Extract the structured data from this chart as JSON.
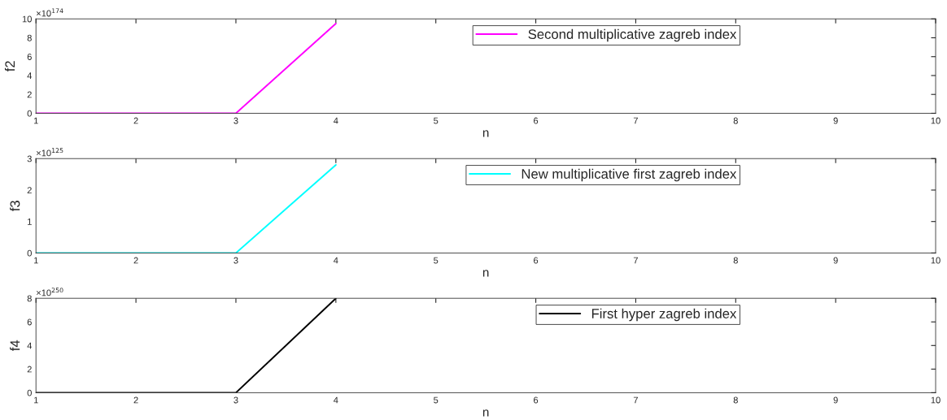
{
  "chart_data": [
    {
      "type": "line",
      "xlabel": "n",
      "ylabel": "f2",
      "annotations": [
        "×10$^{174}$"
      ],
      "x": [
        1,
        2,
        3,
        4
      ],
      "series": [
        {
          "name": "Second multiplicative zagreb index",
          "color": "#ff00ff",
          "values": [
            0,
            0,
            0,
            9.5
          ]
        }
      ],
      "xlim": [
        1,
        10
      ],
      "xticks": [
        1,
        2,
        3,
        4,
        5,
        6,
        7,
        8,
        9,
        10
      ],
      "ylim": [
        0,
        10
      ],
      "yticks": [
        0,
        2,
        4,
        6,
        8,
        10
      ],
      "legend": "top right",
      "grid": false
    },
    {
      "type": "line",
      "xlabel": "n",
      "ylabel": "f3",
      "annotations": [
        "×10$^{125}$"
      ],
      "x": [
        1,
        2,
        3,
        4
      ],
      "series": [
        {
          "name": "New multiplicative first zagreb index",
          "color": "#00ffff",
          "values": [
            0,
            0,
            0,
            2.8
          ]
        }
      ],
      "xlim": [
        1,
        10
      ],
      "xticks": [
        1,
        2,
        3,
        4,
        5,
        6,
        7,
        8,
        9,
        10
      ],
      "ylim": [
        0,
        3
      ],
      "yticks": [
        0,
        1,
        2,
        3
      ],
      "legend": "top right",
      "grid": false
    },
    {
      "type": "line",
      "xlabel": "n",
      "ylabel": "f4",
      "annotations": [
        "×10$^{250}$"
      ],
      "x": [
        1,
        2,
        3,
        4
      ],
      "series": [
        {
          "name": "First hyper zagreb index",
          "color": "#000000",
          "values": [
            0,
            0,
            0,
            8
          ]
        }
      ],
      "xlim": [
        1,
        10
      ],
      "xticks": [
        1,
        2,
        3,
        4,
        5,
        6,
        7,
        8,
        9,
        10
      ],
      "ylim": [
        0,
        8
      ],
      "yticks": [
        0,
        2,
        4,
        6,
        8
      ],
      "legend": "top right",
      "grid": false
    }
  ]
}
